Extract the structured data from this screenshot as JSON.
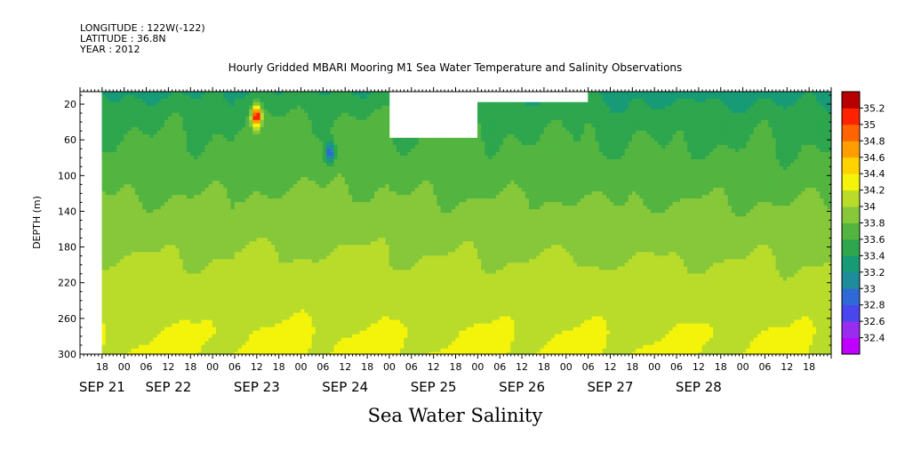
{
  "header": {
    "longitude": "LONGITUDE : 122W(-122)",
    "latitude": "LATITUDE : 36.8N",
    "year": "YEAR : 2012"
  },
  "colors": {
    "background": "#ffffff",
    "missing_data": "#ffffff",
    "axis": "#000000"
  },
  "chart_data": {
    "type": "heatmap",
    "title": "Hourly Gridded MBARI Mooring M1 Sea Water Temperature and Salinity Observations",
    "variable_label": "Sea Water Salinity",
    "ylabel": "DEPTH (m)",
    "xlabel": "",
    "x_axis": {
      "unit": "hours since 2012-09-20 12:00",
      "range": [
        0,
        204
      ],
      "hour_ticks": [
        {
          "h": 6,
          "label": "18"
        },
        {
          "h": 12,
          "label": "00"
        },
        {
          "h": 18,
          "label": "06"
        },
        {
          "h": 24,
          "label": "12"
        },
        {
          "h": 30,
          "label": "18"
        },
        {
          "h": 36,
          "label": "00"
        },
        {
          "h": 42,
          "label": "06"
        },
        {
          "h": 48,
          "label": "12"
        },
        {
          "h": 54,
          "label": "18"
        },
        {
          "h": 60,
          "label": "00"
        },
        {
          "h": 66,
          "label": "06"
        },
        {
          "h": 72,
          "label": "12"
        },
        {
          "h": 78,
          "label": "18"
        },
        {
          "h": 84,
          "label": "00"
        },
        {
          "h": 90,
          "label": "06"
        },
        {
          "h": 96,
          "label": "12"
        },
        {
          "h": 102,
          "label": "18"
        },
        {
          "h": 108,
          "label": "00"
        },
        {
          "h": 114,
          "label": "06"
        },
        {
          "h": 120,
          "label": "12"
        },
        {
          "h": 126,
          "label": "18"
        },
        {
          "h": 132,
          "label": "00"
        },
        {
          "h": 138,
          "label": "06"
        },
        {
          "h": 144,
          "label": "12"
        },
        {
          "h": 150,
          "label": "18"
        },
        {
          "h": 156,
          "label": "00"
        },
        {
          "h": 162,
          "label": "06"
        },
        {
          "h": 168,
          "label": "12"
        },
        {
          "h": 174,
          "label": "18"
        },
        {
          "h": 180,
          "label": "00"
        },
        {
          "h": 186,
          "label": "06"
        },
        {
          "h": 192,
          "label": "12"
        },
        {
          "h": 198,
          "label": "18"
        }
      ],
      "date_labels": [
        {
          "h": 6,
          "label": "SEP 21"
        },
        {
          "h": 24,
          "label": "SEP 22"
        },
        {
          "h": 48,
          "label": "SEP 23"
        },
        {
          "h": 72,
          "label": "SEP 24"
        },
        {
          "h": 96,
          "label": "SEP 25"
        },
        {
          "h": 120,
          "label": "SEP 26"
        },
        {
          "h": 144,
          "label": "SEP 27"
        },
        {
          "h": 168,
          "label": "SEP 28"
        }
      ]
    },
    "y_axis": {
      "range": [
        300,
        6
      ],
      "inverted": true,
      "ticks": [
        20,
        60,
        100,
        140,
        180,
        220,
        260,
        300
      ]
    },
    "colorbar": {
      "levels": [
        32.4,
        32.6,
        32.8,
        33,
        33.2,
        33.4,
        33.6,
        33.8,
        34,
        34.2,
        34.4,
        34.6,
        34.8,
        35,
        35.2
      ],
      "colors": [
        "#c000ff",
        "#9a2cf0",
        "#4a46ee",
        "#2f69d6",
        "#1e8c9c",
        "#179b76",
        "#2da64e",
        "#53b540",
        "#86c83a",
        "#b9dc2a",
        "#f4f40a",
        "#ffd200",
        "#ff9e00",
        "#ff6400",
        "#ff2200",
        "#b80000"
      ]
    },
    "profile": {
      "depths": [
        6,
        20,
        35,
        55,
        75,
        100,
        125,
        150,
        175,
        200,
        225,
        250,
        275,
        300
      ],
      "salinity": [
        33.35,
        33.45,
        33.55,
        33.6,
        33.65,
        33.72,
        33.8,
        33.88,
        33.95,
        34.02,
        34.08,
        34.14,
        34.2,
        34.22
      ]
    },
    "data_start_hour": 6,
    "missing_regions": [
      {
        "h0": 84,
        "h1": 108,
        "d0": 6,
        "d1": 60,
        "label": ""
      },
      {
        "h0": 108,
        "h1": 138,
        "d0": 6,
        "d1": 20,
        "label": ""
      }
    ],
    "anomalies": [
      {
        "h": 48,
        "depth": 34,
        "salinity": 35.2
      },
      {
        "h": 68,
        "depth": 75,
        "salinity": 32.8
      }
    ]
  }
}
